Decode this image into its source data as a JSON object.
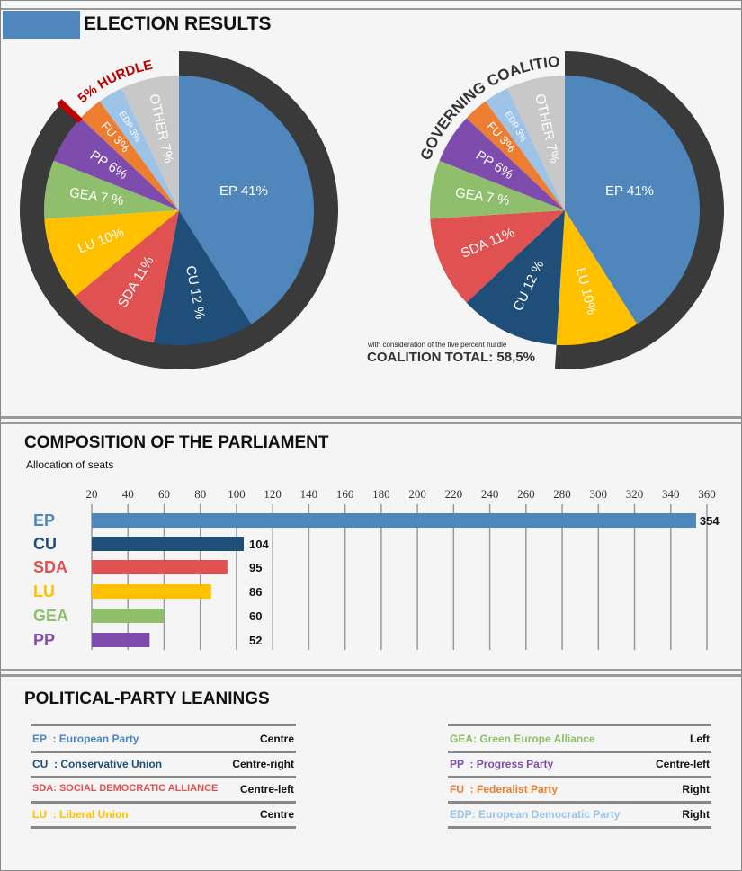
{
  "colors": {
    "EP": "#4f86bc",
    "CU": "#1f4e79",
    "SDA": "#e05252",
    "LU": "#ffc000",
    "GEA": "#8fbf6c",
    "PP": "#7e4cad",
    "FU": "#ed7d31",
    "EDP": "#9dc3e6",
    "OTHER": "#c8c8c8",
    "ring": "#3a3a3a",
    "hurdle": "#c00000"
  },
  "election": {
    "title": "ELECTION RESULTS"
  },
  "chart_data": [
    {
      "type": "pie",
      "slices": [
        {
          "party": "EP",
          "value": 41,
          "label": "EP 41%"
        },
        {
          "party": "CU",
          "value": 12,
          "label": "CU 12 %"
        },
        {
          "party": "SDA",
          "value": 11,
          "label": "SDA 11%"
        },
        {
          "party": "LU",
          "value": 10,
          "label": "LU 10%"
        },
        {
          "party": "GEA",
          "value": 7,
          "label": "GEA  7 %"
        },
        {
          "party": "PP",
          "value": 6,
          "label": "PP 6%"
        },
        {
          "party": "FU",
          "value": 3,
          "label": "FU 3%"
        },
        {
          "party": "EDP",
          "value": 3,
          "label": "EDP 3%"
        },
        {
          "party": "OTHER",
          "value": 7,
          "label": "OTHER 7%"
        }
      ],
      "ring_label": "5% HURDLE"
    },
    {
      "type": "pie",
      "slices": [
        {
          "party": "EP",
          "value": 41,
          "label": "EP 41%"
        },
        {
          "party": "LU",
          "value": 10,
          "label": "LU 10%"
        },
        {
          "party": "CU",
          "value": 12,
          "label": "CU 12 %"
        },
        {
          "party": "SDA",
          "value": 11,
          "label": "SDA 11%"
        },
        {
          "party": "GEA",
          "value": 7,
          "label": "GEA  7 %"
        },
        {
          "party": "PP",
          "value": 6,
          "label": "PP 6%"
        },
        {
          "party": "FU",
          "value": 3,
          "label": "FU 3%"
        },
        {
          "party": "EDP",
          "value": 3,
          "label": "EDP 3%"
        },
        {
          "party": "OTHER",
          "value": 7,
          "label": "OTHER 7%"
        }
      ],
      "ring_label": "GOVERNING COALITION",
      "note": "with consideration of the five percent hurdle",
      "total": "COALITION TOTAL: 58,5%"
    },
    {
      "type": "bar",
      "title": "COMPOSITION OF THE PARLIAMENT",
      "subtitle": "Allocation of seats",
      "categories": [
        "EP",
        "CU",
        "SDA",
        "LU",
        "GEA",
        "PP"
      ],
      "values": [
        354,
        104,
        95,
        86,
        60,
        52
      ],
      "ticks": [
        20,
        40,
        60,
        80,
        100,
        120,
        140,
        160,
        180,
        200,
        220,
        240,
        260,
        280,
        300,
        320,
        340,
        360
      ],
      "xlim": [
        20,
        360
      ],
      "grid": true
    }
  ],
  "leanings": {
    "title": "POLITICAL-PARTY LEANINGS",
    "left": [
      {
        "party": "EP",
        "name": "EP  : European Party",
        "leaning": "Centre"
      },
      {
        "party": "CU",
        "name": "CU  : Conservative Union",
        "leaning": "Centre-right"
      },
      {
        "party": "SDA",
        "name": "SDA: SOCIAL DEMOCRATIC ALLIANCE",
        "leaning": "Centre-left"
      },
      {
        "party": "LU",
        "name": "LU  : Liberal Union",
        "leaning": "Centre"
      }
    ],
    "right": [
      {
        "party": "GEA",
        "name": "GEA: Green Europe Alliance",
        "leaning": "Left"
      },
      {
        "party": "PP",
        "name": "PP  : Progress Party",
        "leaning": "Centre-left"
      },
      {
        "party": "FU",
        "name": "FU  : Federalist Party",
        "leaning": "Right"
      },
      {
        "party": "EDP",
        "name": "EDP: European Democratic Party",
        "leaning": "Right"
      }
    ]
  }
}
